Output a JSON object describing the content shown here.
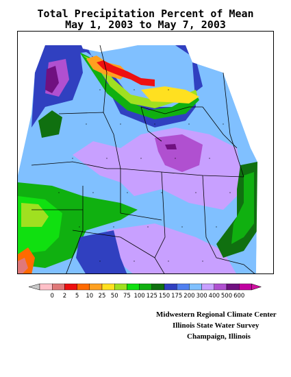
{
  "title_line1": "Total Precipitation Percent of Mean",
  "title_line2": "May 1, 2003 to May 7, 2003",
  "legend": {
    "labels": [
      "0",
      "2",
      "5",
      "10",
      "25",
      "50",
      "75",
      "100",
      "125",
      "150",
      "175",
      "200",
      "300",
      "400",
      "500",
      "600"
    ],
    "colors": [
      "#ffc0c8",
      "#e07878",
      "#ee1010",
      "#ff6a00",
      "#ffa020",
      "#ffe020",
      "#a0e020",
      "#10e010",
      "#10b010",
      "#107010",
      "#3040c0",
      "#5080f0",
      "#80c0ff",
      "#c8a0ff",
      "#b050d0",
      "#701080",
      "#c000a0"
    ],
    "under_color": "#c8c8c8",
    "over_color": "#d010a0"
  },
  "credits": [
    "Midwestern Regional Climate Center",
    "Illinois State Water Survey",
    "Champaign, Illinois"
  ]
}
